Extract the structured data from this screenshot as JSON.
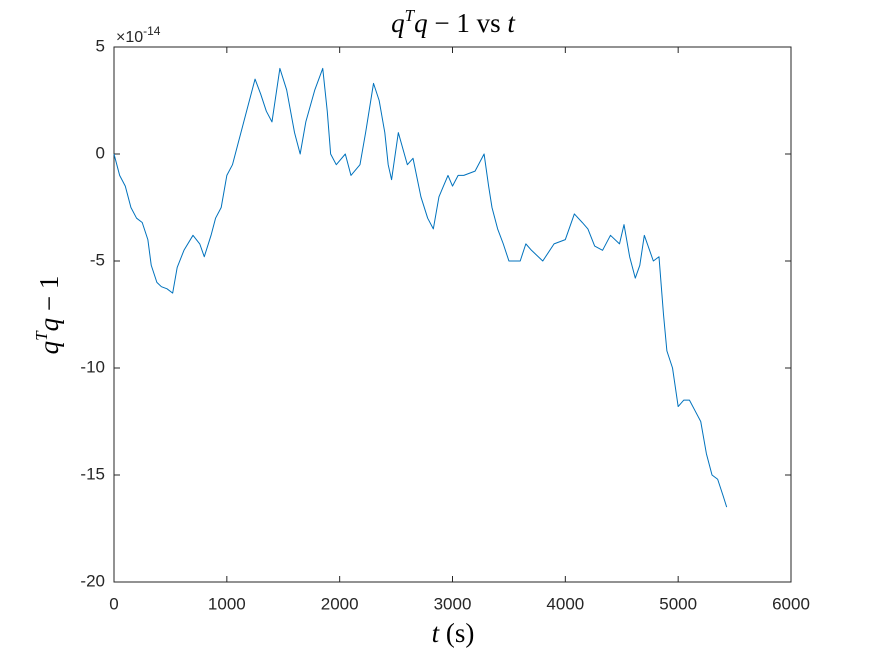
{
  "chart_data": {
    "type": "line",
    "title": {
      "q1": "q",
      "sup": "T",
      "q2": "q",
      "rest": " − 1 vs ",
      "t": "t"
    },
    "x_label": {
      "t": "t",
      "unit": " (s)"
    },
    "y_label": {
      "q1": "q",
      "sup": "T",
      "q2": "q",
      "rest": " − 1"
    },
    "y_exponent": {
      "base": "×10",
      "power": "-14"
    },
    "x": [
      0,
      50,
      100,
      150,
      200,
      250,
      300,
      330,
      380,
      420,
      470,
      520,
      560,
      620,
      700,
      760,
      800,
      860,
      900,
      950,
      1000,
      1050,
      1100,
      1150,
      1200,
      1250,
      1300,
      1350,
      1400,
      1470,
      1530,
      1600,
      1650,
      1700,
      1780,
      1850,
      1890,
      1920,
      1970,
      2050,
      2100,
      2180,
      2230,
      2300,
      2350,
      2400,
      2430,
      2460,
      2520,
      2600,
      2650,
      2720,
      2780,
      2830,
      2880,
      2920,
      2960,
      3000,
      3050,
      3100,
      3200,
      3280,
      3320,
      3350,
      3400,
      3450,
      3500,
      3600,
      3650,
      3700,
      3800,
      3900,
      4000,
      4080,
      4150,
      4200,
      4260,
      4330,
      4400,
      4480,
      4520,
      4570,
      4620,
      4660,
      4700,
      4780,
      4830,
      4870,
      4900,
      4950,
      5000,
      5050,
      5100,
      5150,
      5200,
      5250,
      5300,
      5350,
      5400,
      5430
    ],
    "series": [
      {
        "name": "qTq-1",
        "color": "#0072BD",
        "values": [
          0,
          -1,
          -1.5,
          -2.5,
          -3,
          -3.2,
          -4,
          -5.2,
          -6,
          -6.2,
          -6.3,
          -6.5,
          -5.3,
          -4.5,
          -3.8,
          -4.2,
          -4.8,
          -3.8,
          -3,
          -2.5,
          -1,
          -0.5,
          0.5,
          1.5,
          2.5,
          3.5,
          2.8,
          2,
          1.5,
          4,
          3,
          1,
          0,
          1.5,
          3,
          4,
          2,
          0,
          -0.5,
          0,
          -1,
          -0.5,
          1,
          3.3,
          2.5,
          1,
          -0.5,
          -1.2,
          1,
          -0.5,
          -0.2,
          -2,
          -3,
          -3.5,
          -2,
          -1.5,
          -1,
          -1.5,
          -1,
          -1,
          -0.8,
          0,
          -1.5,
          -2.5,
          -3.5,
          -4.2,
          -5,
          -5,
          -4.2,
          -4.5,
          -5,
          -4.2,
          -4,
          -2.8,
          -3.2,
          -3.5,
          -4.3,
          -4.5,
          -3.8,
          -4.2,
          -3.3,
          -4.8,
          -5.8,
          -5.2,
          -3.8,
          -5,
          -4.8,
          -7.5,
          -9.2,
          -10,
          -11.8,
          -11.5,
          -11.5,
          -12,
          -12.5,
          -14,
          -15,
          -15.2,
          -16,
          -16.5
        ]
      }
    ],
    "xlim": [
      0,
      6000
    ],
    "xticks": [
      0,
      1000,
      2000,
      3000,
      4000,
      5000,
      6000
    ],
    "ylim": [
      -20,
      5
    ],
    "yticks": [
      -20,
      -15,
      -10,
      -5,
      0,
      5
    ]
  }
}
